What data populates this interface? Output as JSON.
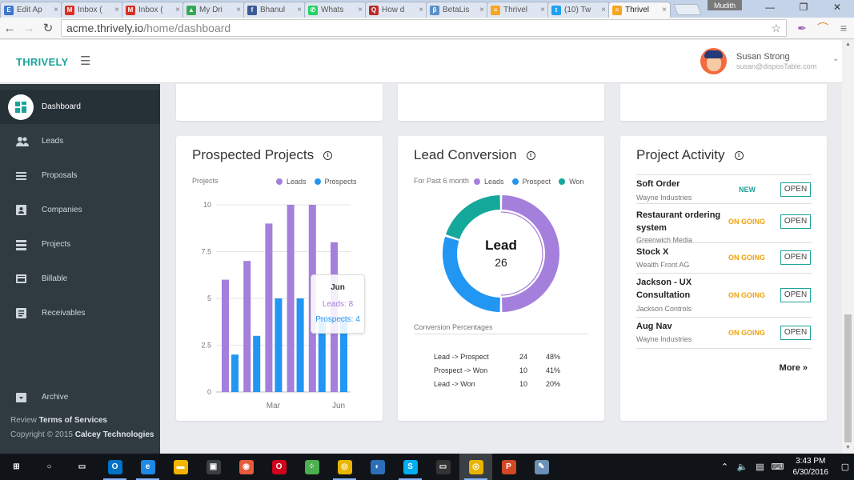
{
  "browser": {
    "tabs": [
      {
        "label": "Edit Ap",
        "icon": "edit-app-icon",
        "color": "#3b78d0",
        "glyph": "E"
      },
      {
        "label": "Inbox (",
        "icon": "gmail-icon",
        "color": "#d93025",
        "glyph": "M"
      },
      {
        "label": "Inbox (",
        "icon": "gmail-icon",
        "color": "#d93025",
        "glyph": "M"
      },
      {
        "label": "My Dri",
        "icon": "google-drive-icon",
        "color": "#34a853",
        "glyph": "▲"
      },
      {
        "label": "Bhanul",
        "icon": "facebook-icon",
        "color": "#3b5998",
        "glyph": "f"
      },
      {
        "label": "Whats",
        "icon": "whatsapp-icon",
        "color": "#25d366",
        "glyph": "✆"
      },
      {
        "label": "How d",
        "icon": "quora-icon",
        "color": "#b92b27",
        "glyph": "Q"
      },
      {
        "label": "BetaLis",
        "icon": "betalist-icon",
        "color": "#5b8fc7",
        "glyph": "β"
      },
      {
        "label": "Thrivel",
        "icon": "thrively-icon",
        "color": "#f5a623",
        "glyph": "≡"
      },
      {
        "label": "(10) Tw",
        "icon": "twitter-icon",
        "color": "#1da1f2",
        "glyph": "t"
      },
      {
        "label": "Thrivel",
        "icon": "thrively-icon",
        "color": "#f5a623",
        "glyph": "≡",
        "active": true
      }
    ],
    "window_user": "Mudith",
    "url_host": "acme.thrively.io",
    "url_path": "/home/dashboard"
  },
  "header": {
    "brand": "THRIVELY",
    "user_name": "Susan Strong",
    "user_email": "susan@disposTable.com"
  },
  "sidebar": {
    "items": [
      {
        "label": "Dashboard",
        "icon": "dashboard-icon"
      },
      {
        "label": "Leads",
        "icon": "people-icon"
      },
      {
        "label": "Proposals",
        "icon": "list-icon"
      },
      {
        "label": "Companies",
        "icon": "contact-card-icon"
      },
      {
        "label": "Projects",
        "icon": "table-list-icon"
      },
      {
        "label": "Billable",
        "icon": "credit-card-icon"
      },
      {
        "label": "Receivables",
        "icon": "document-icon"
      },
      {
        "label": "Archive",
        "icon": "archive-icon"
      }
    ],
    "footer_review_prefix": "Review",
    "footer_review_link": "Terms of Services",
    "footer_copyright_prefix": "Copyright © 2015",
    "footer_copyright_company": "Calcey Technologies"
  },
  "prospected": {
    "title": "Prospected Projects",
    "y_axis_label": "Projects",
    "legend": [
      "Leads",
      "Prospects"
    ],
    "tooltip": {
      "title": "Jun",
      "leads": "Leads: 8",
      "prospects": "Prospects: 4"
    }
  },
  "lead_conversion": {
    "title": "Lead Conversion",
    "subtitle": "For Past 6 month",
    "legend": [
      "Leads",
      "Prospect",
      "Won"
    ],
    "center_label": "Lead",
    "center_value": "26",
    "percent_title": "Conversion Percentages",
    "rows": [
      {
        "stage": "Lead -> Prospect",
        "count": "24",
        "pct": "48%"
      },
      {
        "stage": "Prospect -> Won",
        "count": "10",
        "pct": "41%"
      },
      {
        "stage": "Lead -> Won",
        "count": "10",
        "pct": "20%"
      }
    ]
  },
  "activity": {
    "title": "Project Activity",
    "button_label": "OPEN",
    "more_label": "More »",
    "items": [
      {
        "title": "Soft Order",
        "company": "Wayne Industries",
        "status": "NEW",
        "status_color": "#1aa39a"
      },
      {
        "title": "Restaurant ordering system",
        "company": "Greenwich Media",
        "status": "ON GOING",
        "status_color": "#f0a30a"
      },
      {
        "title": "Stock X",
        "company": "Wealth Front AG",
        "status": "ON GOING",
        "status_color": "#f0a30a"
      },
      {
        "title": "Jackson - UX Consultation",
        "company": "Jackson Controls",
        "status": "ON GOING",
        "status_color": "#f0a30a"
      },
      {
        "title": "Aug Nav",
        "company": "Wayne Industries",
        "status": "ON GOING",
        "status_color": "#f0a30a"
      }
    ]
  },
  "colors": {
    "accent": "#1aa39a",
    "leads": "#a47fdc",
    "prospects": "#2196f3",
    "won": "#14a89a",
    "sidebar": "#2f3a41"
  },
  "chart_data": [
    {
      "type": "bar",
      "title": "Prospected Projects",
      "ylabel": "Projects",
      "categories": [
        "",
        "",
        "Mar",
        "",
        "",
        "Jun"
      ],
      "series": [
        {
          "name": "Leads",
          "values": [
            6,
            7,
            9,
            10,
            10,
            8
          ]
        },
        {
          "name": "Prospects",
          "values": [
            2,
            3,
            5,
            5,
            4,
            4
          ]
        }
      ],
      "yticks": [
        "10",
        "7.5",
        "5",
        "2.5",
        "0"
      ],
      "ylim": [
        0,
        10
      ],
      "grid": true,
      "legend": "top-right"
    },
    {
      "type": "pie",
      "title": "Lead Conversion",
      "labels": [
        "Leads",
        "Prospect",
        "Won"
      ],
      "values": [
        50,
        30,
        20
      ],
      "center_label": "Lead",
      "center_value": 26,
      "legend": "top"
    }
  ],
  "taskbar": {
    "time": "3:43 PM",
    "date": "6/30/2016",
    "apps": [
      {
        "icon": "windows-start-icon",
        "color": "#101418",
        "glyph": "⊞"
      },
      {
        "icon": "search-icon",
        "color": "#101418",
        "glyph": "○"
      },
      {
        "icon": "task-view-icon",
        "color": "#101418",
        "glyph": "▭"
      },
      {
        "icon": "outlook-icon",
        "color": "#0072c6",
        "glyph": "O"
      },
      {
        "icon": "edge-icon",
        "color": "#1e88e5",
        "glyph": "e"
      },
      {
        "icon": "file-explorer-icon",
        "color": "#f3b400",
        "glyph": "▬"
      },
      {
        "icon": "store-icon",
        "color": "#3a3f44",
        "glyph": "▣"
      },
      {
        "icon": "screen-capture-icon",
        "color": "#e55b3c",
        "glyph": "◉"
      },
      {
        "icon": "opera-icon",
        "color": "#d0021b",
        "glyph": "O"
      },
      {
        "icon": "apps-grid-icon",
        "color": "#4caf50",
        "glyph": "⁘"
      },
      {
        "icon": "chrome-icon",
        "color": "#e8b400",
        "glyph": "◎"
      },
      {
        "icon": "vpn-icon",
        "color": "#2a6fb8",
        "glyph": "◐"
      },
      {
        "icon": "skype-icon",
        "color": "#00aff0",
        "glyph": "S"
      },
      {
        "icon": "terminal-icon",
        "color": "#333",
        "glyph": "▭"
      },
      {
        "icon": "chrome-icon",
        "color": "#e8b400",
        "glyph": "◎"
      },
      {
        "icon": "powerpoint-icon",
        "color": "#d24726",
        "glyph": "P"
      },
      {
        "icon": "paint-icon",
        "color": "#6b8fb5",
        "glyph": "✎"
      }
    ]
  }
}
